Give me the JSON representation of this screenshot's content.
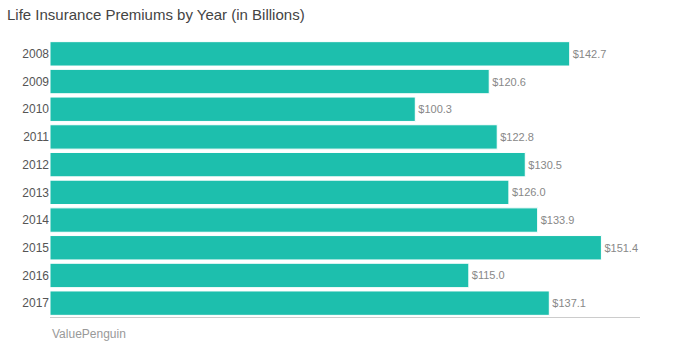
{
  "chart_data": {
    "type": "bar",
    "orientation": "horizontal",
    "title": "Life Insurance Premiums by Year (in Billions)",
    "categories": [
      "2008",
      "2009",
      "2010",
      "2011",
      "2012",
      "2013",
      "2014",
      "2015",
      "2016",
      "2017"
    ],
    "values": [
      142.7,
      120.6,
      100.3,
      122.8,
      130.5,
      126.0,
      133.9,
      151.4,
      115.0,
      137.1
    ],
    "value_labels": [
      "$142.7",
      "$120.6",
      "$100.3",
      "$122.8",
      "$130.5",
      "$126.0",
      "$133.9",
      "$151.4",
      "$115.0",
      "$137.1"
    ],
    "data_labels": true,
    "color": "#1DBFAD",
    "xlim": [
      0,
      162
    ],
    "tick_labels": "y",
    "grid": false,
    "annotations": [
      "ValuePenguin"
    ]
  }
}
